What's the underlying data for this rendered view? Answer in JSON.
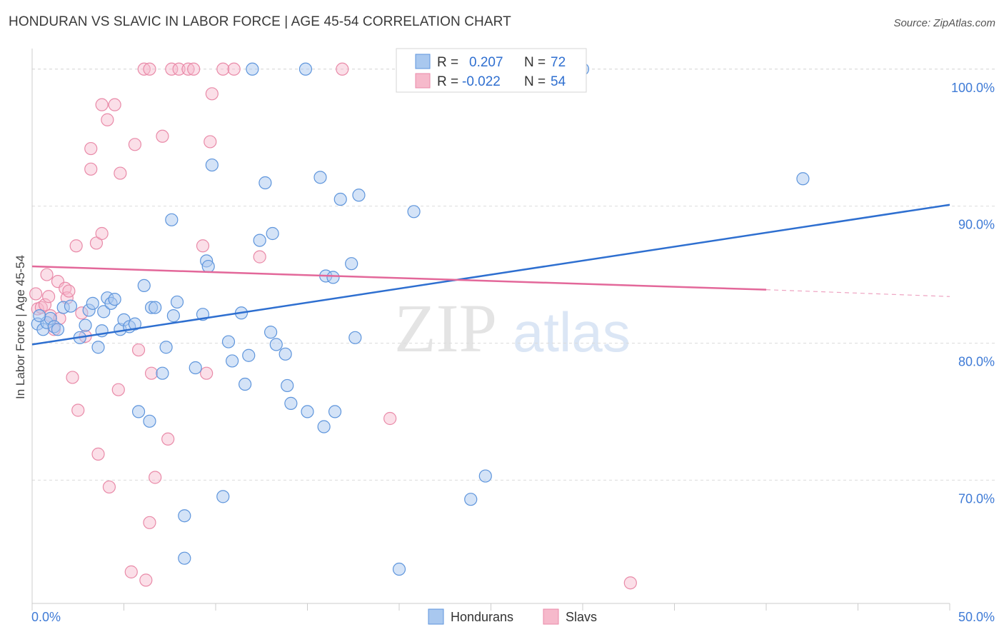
{
  "title": "HONDURAN VS SLAVIC IN LABOR FORCE | AGE 45-54 CORRELATION CHART",
  "source": "Source: ZipAtlas.com",
  "watermark": {
    "zip": "ZIP",
    "atlas": "atlas"
  },
  "colors": {
    "hondurans_fill": "#a9c8ef",
    "hondurans_stroke": "#5e95dc",
    "hondurans_line": "#2e6fd0",
    "slavs_fill": "#f6b9cb",
    "slavs_stroke": "#e98aa8",
    "slavs_line": "#e3689a",
    "tick_label": "#3f7bd6",
    "grid": "#dcdcdc"
  },
  "legend": {
    "rows": [
      {
        "r_label": "R =",
        "r_value": "0.207",
        "n_label": "N =",
        "n_value": "72"
      },
      {
        "r_label": "R =",
        "r_value": "-0.022",
        "n_label": "N =",
        "n_value": "54"
      }
    ]
  },
  "bottom_legend": [
    "Hondurans",
    "Slavs"
  ],
  "chart_data": {
    "type": "scatter",
    "xlabel": "",
    "ylabel": "In Labor Force | Age 45-54",
    "xlim": [
      0,
      50
    ],
    "ylim": [
      61,
      101.5
    ],
    "x_tick_labels": [
      "0.0%",
      "50.0%"
    ],
    "y_ticks": [
      70,
      80,
      90,
      100
    ],
    "y_tick_labels": [
      "70.0%",
      "80.0%",
      "90.0%",
      "100.0%"
    ],
    "legend_position": "top-center",
    "series": [
      {
        "name": "Hondurans",
        "r": 0.207,
        "n": 72,
        "trend": {
          "x": [
            0,
            50
          ],
          "y": [
            79.9,
            90.1
          ]
        },
        "points": [
          [
            0.3,
            81.4
          ],
          [
            0.6,
            81.0
          ],
          [
            0.8,
            81.5
          ],
          [
            1.0,
            81.8
          ],
          [
            1.2,
            81.2
          ],
          [
            1.4,
            81.0
          ],
          [
            1.7,
            82.6
          ],
          [
            2.1,
            82.7
          ],
          [
            2.6,
            80.4
          ],
          [
            2.9,
            81.3
          ],
          [
            3.1,
            82.4
          ],
          [
            3.3,
            82.9
          ],
          [
            3.6,
            79.7
          ],
          [
            3.9,
            82.3
          ],
          [
            4.1,
            83.3
          ],
          [
            4.3,
            82.9
          ],
          [
            4.5,
            83.2
          ],
          [
            4.8,
            81.0
          ],
          [
            5.0,
            81.7
          ],
          [
            5.3,
            81.2
          ],
          [
            5.6,
            81.4
          ],
          [
            5.8,
            75.0
          ],
          [
            6.1,
            84.2
          ],
          [
            6.4,
            74.3
          ],
          [
            6.5,
            82.6
          ],
          [
            6.7,
            82.6
          ],
          [
            7.1,
            77.8
          ],
          [
            7.3,
            79.7
          ],
          [
            7.6,
            89.0
          ],
          [
            7.7,
            82.0
          ],
          [
            7.9,
            83.0
          ],
          [
            8.3,
            67.4
          ],
          [
            8.3,
            64.3
          ],
          [
            8.9,
            78.2
          ],
          [
            9.3,
            82.1
          ],
          [
            9.5,
            86.0
          ],
          [
            9.6,
            85.6
          ],
          [
            9.8,
            93.0
          ],
          [
            10.4,
            68.8
          ],
          [
            10.7,
            80.1
          ],
          [
            10.9,
            78.7
          ],
          [
            11.4,
            82.2
          ],
          [
            11.6,
            77.0
          ],
          [
            11.8,
            79.1
          ],
          [
            12.0,
            100.0
          ],
          [
            12.4,
            87.5
          ],
          [
            12.7,
            91.7
          ],
          [
            13.0,
            80.8
          ],
          [
            13.1,
            88.0
          ],
          [
            13.3,
            79.9
          ],
          [
            13.8,
            79.2
          ],
          [
            13.9,
            76.9
          ],
          [
            14.1,
            75.6
          ],
          [
            14.9,
            100.0
          ],
          [
            15.0,
            75.0
          ],
          [
            15.7,
            92.1
          ],
          [
            15.9,
            73.9
          ],
          [
            16.0,
            84.9
          ],
          [
            16.5,
            75.0
          ],
          [
            16.8,
            90.5
          ],
          [
            17.4,
            85.8
          ],
          [
            17.6,
            80.4
          ],
          [
            17.8,
            90.8
          ],
          [
            20.0,
            63.5
          ],
          [
            20.8,
            89.6
          ],
          [
            23.9,
            68.6
          ],
          [
            24.7,
            70.3
          ],
          [
            30.0,
            100.0
          ],
          [
            42.0,
            92.0
          ],
          [
            0.4,
            82.0
          ],
          [
            3.8,
            80.9
          ],
          [
            16.4,
            84.8
          ]
        ]
      },
      {
        "name": "Slavs",
        "r": -0.022,
        "n": 54,
        "trend": {
          "x": [
            0,
            40
          ],
          "y": [
            85.6,
            83.9
          ]
        },
        "trend_dashed": {
          "x": [
            40,
            50
          ],
          "y": [
            83.9,
            83.4
          ]
        },
        "points": [
          [
            0.2,
            83.6
          ],
          [
            0.3,
            82.5
          ],
          [
            0.5,
            82.6
          ],
          [
            0.7,
            82.8
          ],
          [
            0.8,
            85.0
          ],
          [
            0.9,
            83.4
          ],
          [
            1.0,
            82.0
          ],
          [
            1.2,
            81.0
          ],
          [
            1.4,
            84.5
          ],
          [
            1.5,
            81.8
          ],
          [
            1.8,
            84.0
          ],
          [
            1.9,
            83.3
          ],
          [
            2.0,
            83.8
          ],
          [
            2.2,
            77.5
          ],
          [
            2.4,
            87.1
          ],
          [
            2.5,
            75.1
          ],
          [
            2.7,
            82.2
          ],
          [
            2.9,
            80.5
          ],
          [
            3.2,
            94.2
          ],
          [
            3.2,
            92.7
          ],
          [
            3.5,
            87.3
          ],
          [
            3.6,
            71.9
          ],
          [
            3.8,
            97.4
          ],
          [
            3.8,
            88.0
          ],
          [
            4.1,
            96.3
          ],
          [
            4.2,
            69.5
          ],
          [
            4.5,
            97.4
          ],
          [
            4.7,
            76.6
          ],
          [
            4.8,
            92.4
          ],
          [
            5.4,
            63.3
          ],
          [
            5.6,
            94.5
          ],
          [
            5.8,
            79.5
          ],
          [
            6.1,
            100.0
          ],
          [
            6.2,
            62.7
          ],
          [
            6.4,
            100.0
          ],
          [
            6.4,
            66.9
          ],
          [
            6.5,
            77.8
          ],
          [
            6.7,
            70.2
          ],
          [
            7.1,
            95.1
          ],
          [
            7.4,
            73.0
          ],
          [
            7.6,
            100.0
          ],
          [
            8.0,
            100.0
          ],
          [
            8.5,
            100.0
          ],
          [
            8.8,
            100.0
          ],
          [
            9.3,
            87.1
          ],
          [
            9.5,
            77.8
          ],
          [
            9.7,
            94.7
          ],
          [
            9.8,
            98.2
          ],
          [
            10.4,
            100.0
          ],
          [
            11.0,
            100.0
          ],
          [
            12.4,
            86.3
          ],
          [
            16.9,
            100.0
          ],
          [
            19.5,
            74.5
          ],
          [
            32.6,
            62.5
          ]
        ]
      }
    ]
  }
}
